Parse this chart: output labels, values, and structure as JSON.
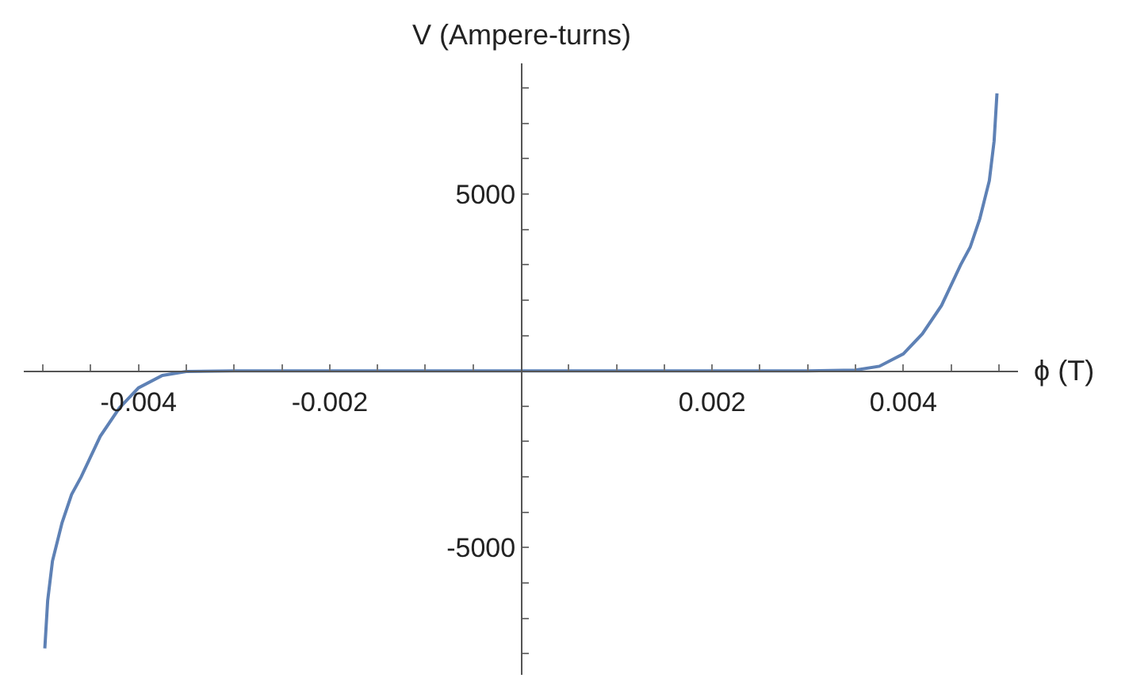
{
  "chart_data": {
    "type": "line",
    "xlabel": "ϕ (T)",
    "ylabel": "V (Ampere-turns)",
    "x": [
      -0.00498,
      -0.00495,
      -0.0049,
      -0.0048,
      -0.0047,
      -0.0046,
      -0.0044,
      -0.0042,
      -0.004,
      -0.00375,
      -0.0035,
      -0.003,
      -0.002,
      -0.001,
      0,
      0.001,
      0.002,
      0.003,
      0.0035,
      0.00375,
      0.004,
      0.0042,
      0.0044,
      0.0046,
      0.0047,
      0.0048,
      0.0049,
      0.00495,
      0.00498
    ],
    "series": [
      {
        "color": "#5e81b5",
        "values": [
          -7850,
          -6500,
          -5380,
          -4300,
          -3500,
          -3000,
          -1850,
          -1050,
          -480,
          -130,
          -20,
          0,
          0,
          0,
          0,
          0,
          0,
          0,
          20,
          130,
          480,
          1050,
          1850,
          3000,
          3500,
          4300,
          5380,
          6500,
          7850
        ]
      }
    ],
    "xlim": [
      -0.0052,
      0.0052
    ],
    "ylim": [
      -8600,
      8700
    ],
    "xticks": [
      {
        "value": -0.005,
        "label": null
      },
      {
        "value": -0.0045,
        "label": null
      },
      -0.004,
      {
        "value": -0.0035,
        "label": null
      },
      {
        "value": -0.003,
        "label": null
      },
      {
        "value": -0.0025,
        "label": null
      },
      -0.002,
      {
        "value": -0.0015,
        "label": null
      },
      {
        "value": -0.001,
        "label": null
      },
      {
        "value": -0.0005,
        "label": null
      },
      {
        "value": 0.0005,
        "label": null
      },
      {
        "value": 0.001,
        "label": null
      },
      {
        "value": 0.0015,
        "label": null
      },
      0.002,
      {
        "value": 0.0025,
        "label": null
      },
      {
        "value": 0.003,
        "label": null
      },
      {
        "value": 0.0035,
        "label": null
      },
      0.004,
      {
        "value": 0.0045,
        "label": null
      },
      {
        "value": 0.005,
        "label": null
      }
    ],
    "yticks": [
      {
        "value": -8000,
        "label": null
      },
      {
        "value": -7000,
        "label": null
      },
      {
        "value": -6000,
        "label": null
      },
      -5000,
      {
        "value": -4000,
        "label": null
      },
      {
        "value": -3000,
        "label": null
      },
      {
        "value": -2000,
        "label": null
      },
      {
        "value": -1000,
        "label": null
      },
      {
        "value": 1000,
        "label": null
      },
      {
        "value": 2000,
        "label": null
      },
      {
        "value": 3000,
        "label": null
      },
      {
        "value": 4000,
        "label": null
      },
      5000,
      {
        "value": 6000,
        "label": null
      },
      {
        "value": 7000,
        "label": null
      },
      {
        "value": 8000,
        "label": null
      }
    ],
    "legend": false
  }
}
